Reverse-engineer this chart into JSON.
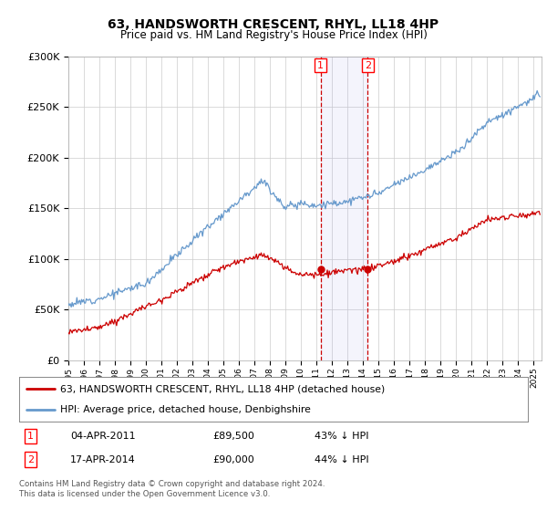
{
  "title": "63, HANDSWORTH CRESCENT, RHYL, LL18 4HP",
  "subtitle": "Price paid vs. HM Land Registry's House Price Index (HPI)",
  "hpi_color": "#6699cc",
  "price_color": "#cc0000",
  "sale1_date": 2011.25,
  "sale1_price": 89500,
  "sale2_date": 2014.3,
  "sale2_price": 90000,
  "ylim_max": 300000,
  "xlim_start": 1995.0,
  "xlim_end": 2025.5,
  "legend_label_red": "63, HANDSWORTH CRESCENT, RHYL, LL18 4HP (detached house)",
  "legend_label_blue": "HPI: Average price, detached house, Denbighshire",
  "footnote": "Contains HM Land Registry data © Crown copyright and database right 2024.\nThis data is licensed under the Open Government Licence v3.0.",
  "background_color": "#ffffff",
  "grid_color": "#cccccc",
  "hpi_noise_scale": 1800,
  "price_noise_scale": 1500,
  "seed": 12
}
